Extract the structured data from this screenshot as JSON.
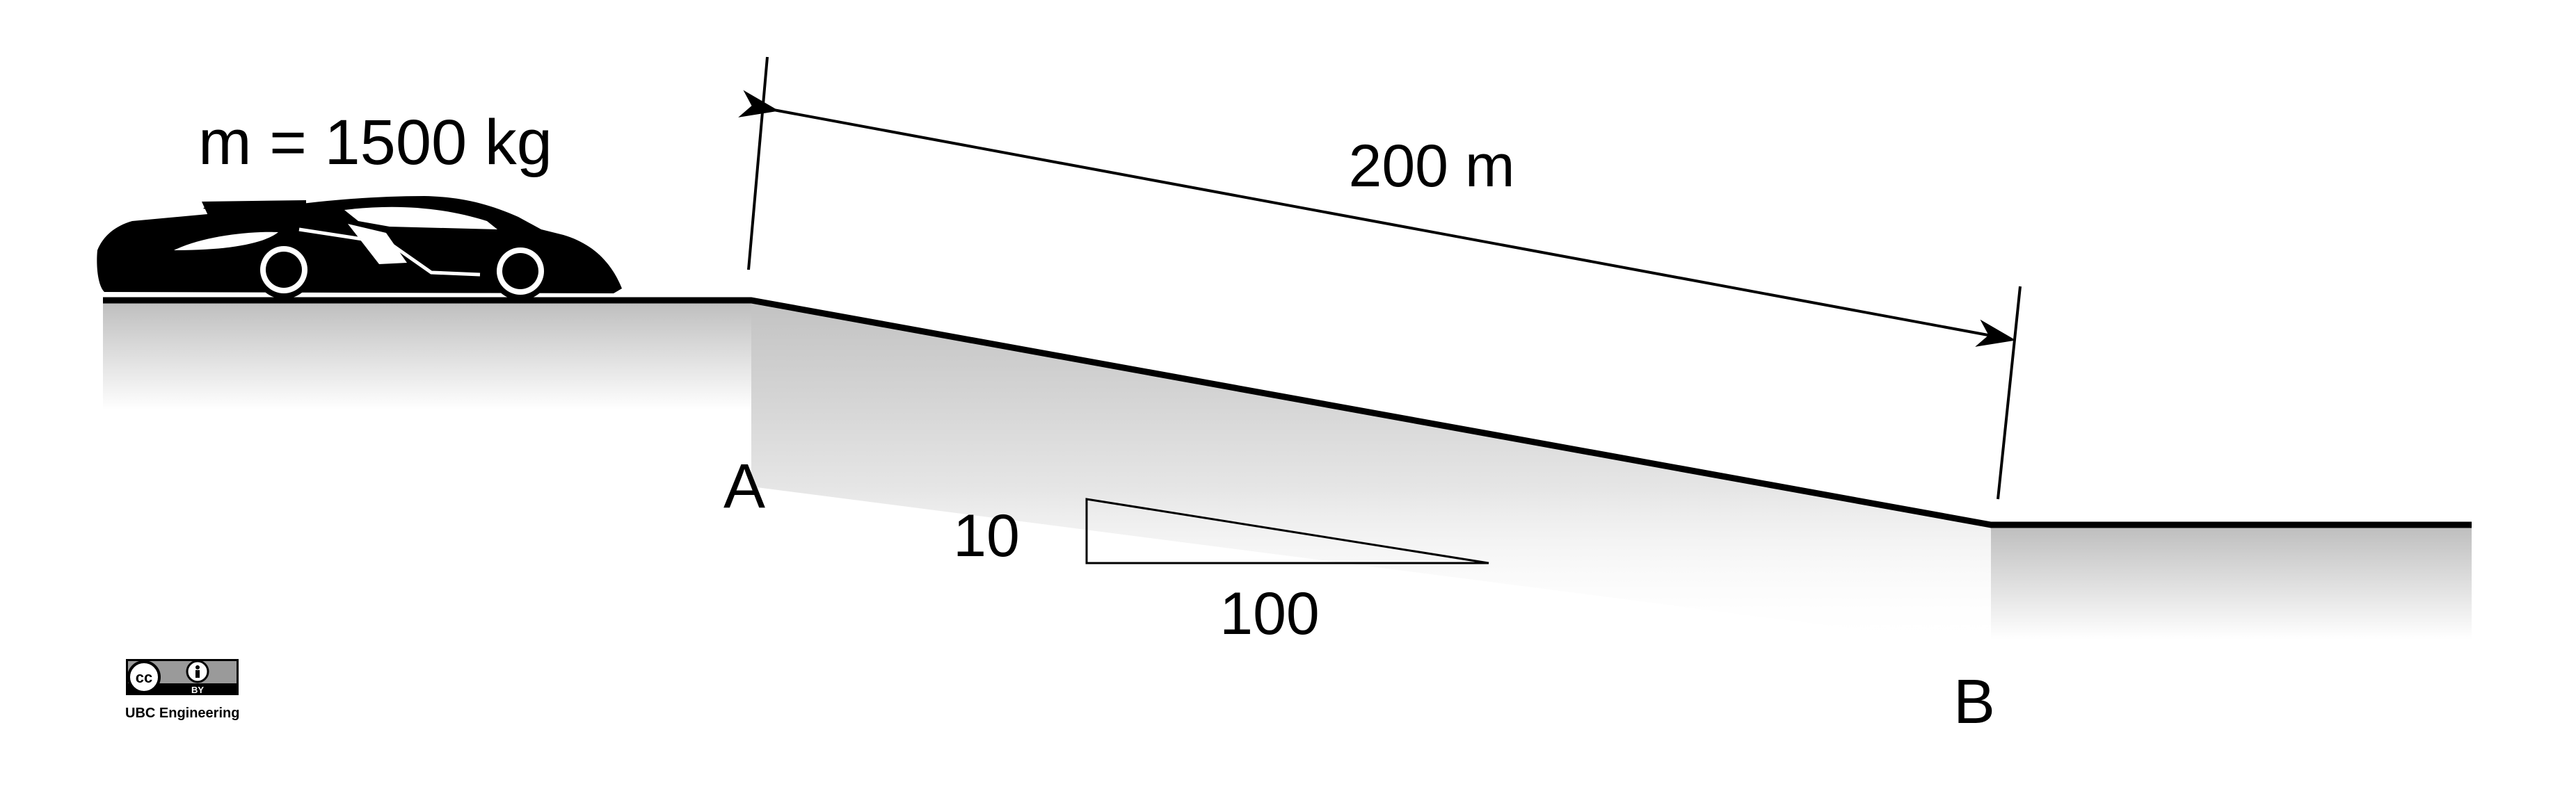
{
  "mass_label": "m = 1500 kg",
  "distance_label": "200 m",
  "point_a": "A",
  "point_b": "B",
  "slope_triangle": {
    "rise": "10",
    "run": "100"
  },
  "license": {
    "cc": "cc",
    "by": "BY",
    "credit": "UBC Engineering"
  },
  "colors": {
    "ink": "#000000",
    "ground_shade": "#c8c8c8",
    "background": "#ffffff"
  }
}
